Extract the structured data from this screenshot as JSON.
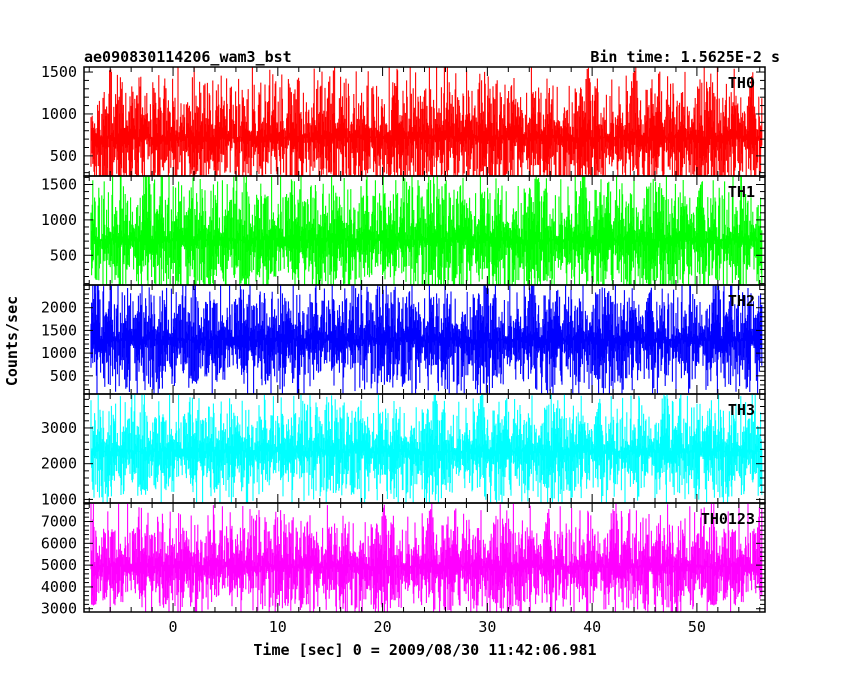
{
  "chart_data": {
    "type": "line",
    "title": "ae090830114206_wam3_bst",
    "subtitle": "Bin time: 1.5625E-2 s",
    "xlabel": "Time [sec] 0 = 2009/08/30 11:42:06.981",
    "ylabel": "Counts/sec",
    "xlim": [
      -8.5,
      56.5
    ],
    "data_x_range": [
      -7.8,
      56.2
    ],
    "xticks": [
      0,
      10,
      20,
      30,
      40,
      50
    ],
    "grid": false,
    "panels": [
      {
        "name": "TH0",
        "color": "#ff0000",
        "ylim": [
          260,
          1560
        ],
        "yticks": [
          500,
          1000,
          1500
        ],
        "band": {
          "mean": 720,
          "low": 250,
          "typical_low": 330,
          "typical_high": 1180,
          "high": 1560
        }
      },
      {
        "name": "TH1",
        "color": "#00ff00",
        "ylim": [
          80,
          1620
        ],
        "yticks": [
          500,
          1000,
          1500
        ],
        "band": {
          "mean": 720,
          "low": 120,
          "typical_low": 250,
          "typical_high": 1300,
          "high": 1580
        }
      },
      {
        "name": "TH2",
        "color": "#0000ff",
        "ylim": [
          100,
          2500
        ],
        "yticks": [
          500,
          1000,
          1500,
          2000
        ],
        "band": {
          "mean": 1300,
          "low": 150,
          "typical_low": 600,
          "typical_high": 2050,
          "high": 2450
        }
      },
      {
        "name": "TH3",
        "color": "#00ffff",
        "ylim": [
          900,
          3950
        ],
        "yticks": [
          1000,
          2000,
          3000
        ],
        "band": {
          "mean": 2350,
          "low": 950,
          "typical_low": 1400,
          "typical_high": 3100,
          "high": 3950
        }
      },
      {
        "name": "TH0123",
        "color": "#ff00ff",
        "ylim": [
          2850,
          7850
        ],
        "yticks": [
          3000,
          4000,
          5000,
          6000,
          7000
        ],
        "band": {
          "mean": 4950,
          "low": 2900,
          "typical_low": 3600,
          "typical_high": 6400,
          "high": 7800
        }
      }
    ]
  }
}
